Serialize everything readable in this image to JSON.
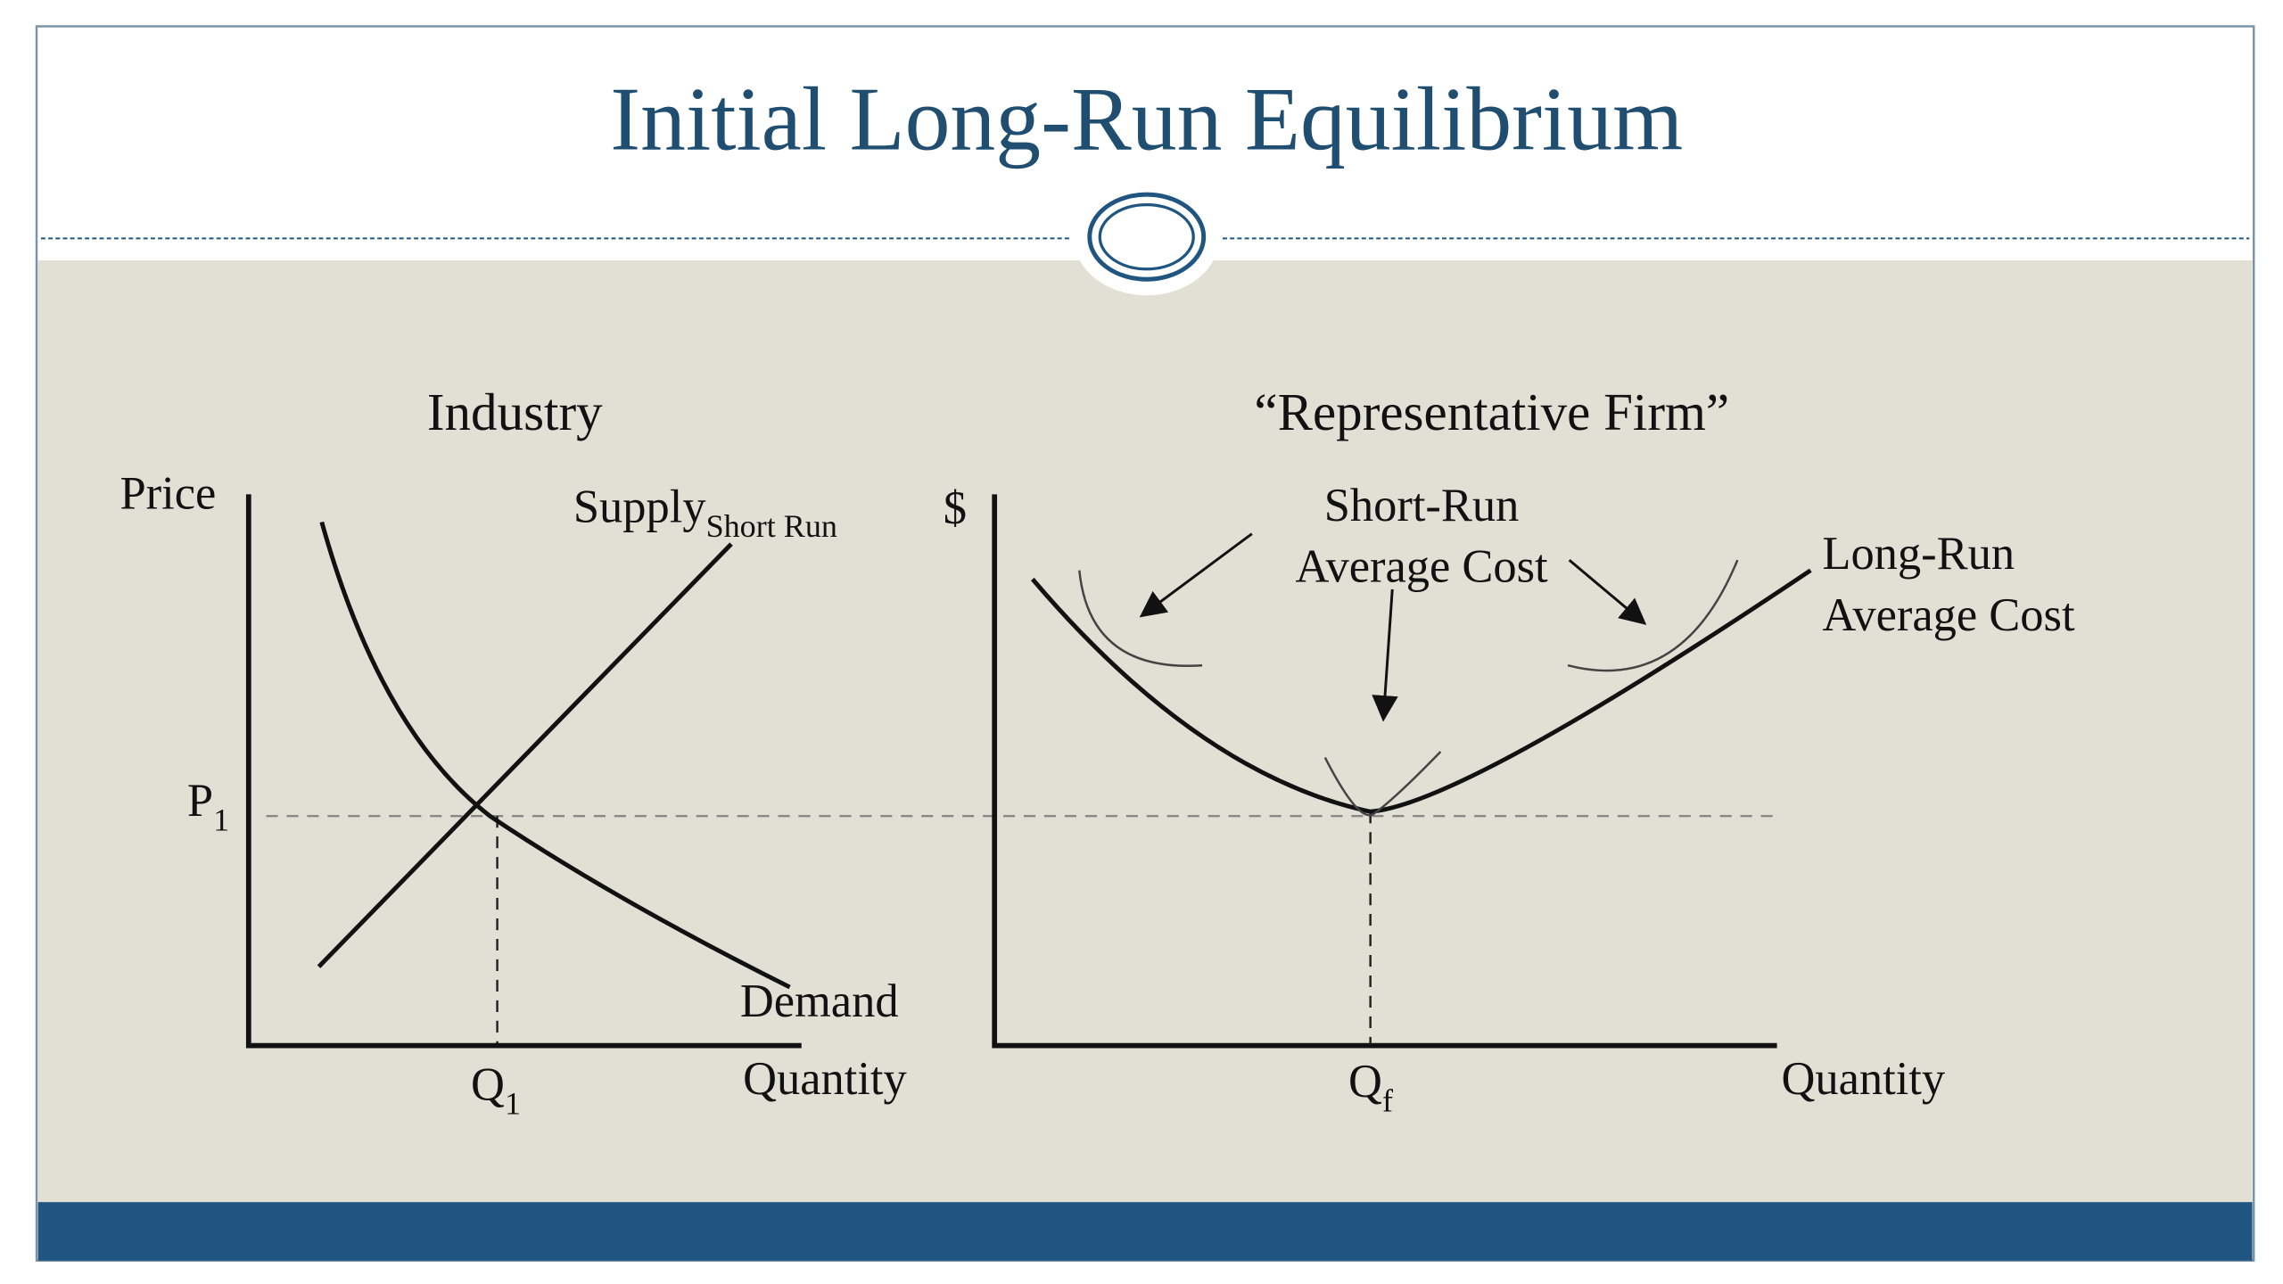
{
  "title": "Initial Long-Run Equilibrium",
  "industry": {
    "title": "Industry",
    "y_axis": "Price",
    "x_axis": "Quantity",
    "supply": {
      "text": "Supply",
      "sub": "Short Run"
    },
    "demand": "Demand",
    "price": {
      "text": "P",
      "sub": "1"
    },
    "quantity": {
      "text": "Q",
      "sub": "1"
    }
  },
  "firm": {
    "title": "“Representative Firm”",
    "y_axis": "$",
    "x_axis": "Quantity",
    "short_run": [
      "Short-Run",
      "Average Cost"
    ],
    "long_run": [
      "Long-Run",
      "Average Cost"
    ],
    "quantity": {
      "text": "Q",
      "sub": "f"
    }
  }
}
